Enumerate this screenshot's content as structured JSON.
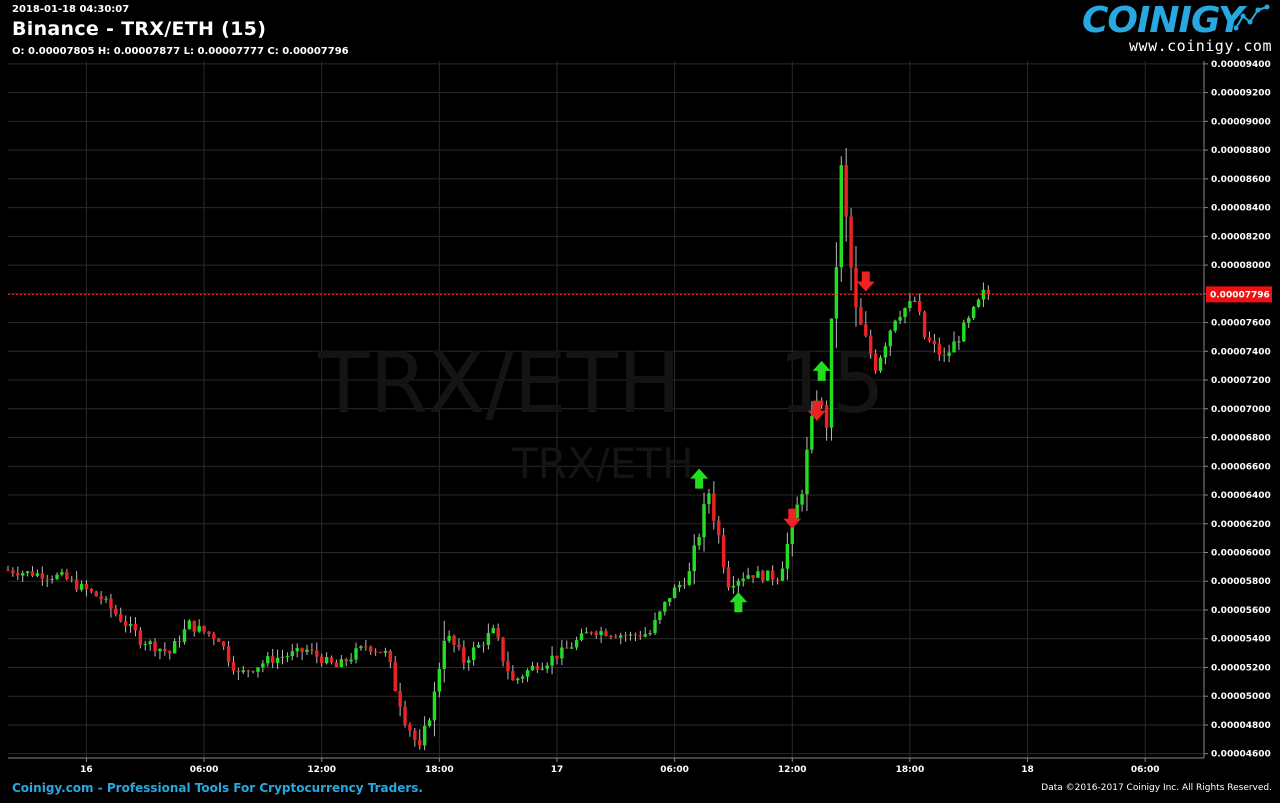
{
  "header": {
    "timestamp": "2018-01-18 04:30:07",
    "title": "Binance - TRX/ETH (15)",
    "ohlc": "O: 0.00007805 H: 0.00007877 L: 0.00007777 C: 0.00007796"
  },
  "logo": {
    "wordmark": "COINIGY",
    "url": "www.coinigy.com"
  },
  "watermark": {
    "pair": "TRX/ETH",
    "interval": "15",
    "pair_small": "TRX/ETH"
  },
  "footer": {
    "left": "Coinigy.com - Professional Tools For Cryptocurrency Traders.",
    "right": "Data ©2016-2017 Coinigy Inc. All Rights Reserved."
  },
  "colors": {
    "up": "#22dd22",
    "down": "#ee2222",
    "accent": "#27a8e0",
    "grid": "#2a2a2a",
    "price_line": "#ff2222"
  },
  "chart_data": {
    "type": "candlestick",
    "interval_minutes": 15,
    "x_start": "2018-01-15 20:00",
    "x_end": "2018-01-18 09:00",
    "x_ticks": [
      {
        "time": "2018-01-16 00:00",
        "label": "16"
      },
      {
        "time": "2018-01-16 06:00",
        "label": "06:00"
      },
      {
        "time": "2018-01-16 12:00",
        "label": "12:00"
      },
      {
        "time": "2018-01-16 18:00",
        "label": "18:00"
      },
      {
        "time": "2018-01-17 00:00",
        "label": "17"
      },
      {
        "time": "2018-01-17 06:00",
        "label": "06:00"
      },
      {
        "time": "2018-01-17 12:00",
        "label": "12:00"
      },
      {
        "time": "2018-01-17 18:00",
        "label": "18:00"
      },
      {
        "time": "2018-01-18 00:00",
        "label": "18"
      },
      {
        "time": "2018-01-18 06:00",
        "label": "06:00"
      }
    ],
    "ylim": [
      4.57e-05,
      9.42e-05
    ],
    "y_ticks": [
      "0.00009400",
      "0.00009200",
      "0.00009000",
      "0.00008800",
      "0.00008600",
      "0.00008400",
      "0.00008200",
      "0.00008000",
      "0.00007800",
      "0.00007600",
      "0.00007400",
      "0.00007200",
      "0.00007000",
      "0.00006800",
      "0.00006600",
      "0.00006400",
      "0.00006200",
      "0.00006000",
      "0.00005800",
      "0.00005600",
      "0.00005400",
      "0.00005200",
      "0.00005000",
      "0.00004800",
      "0.00004600"
    ],
    "current_price": "0.00007796",
    "grid": true,
    "key_points": [
      {
        "time": "2018-01-15 20:00",
        "price": 5.88e-05
      },
      {
        "time": "2018-01-15 23:00",
        "price": 5.83e-05
      },
      {
        "time": "2018-01-16 01:00",
        "price": 5.68e-05
      },
      {
        "time": "2018-01-16 03:00",
        "price": 5.4e-05
      },
      {
        "time": "2018-01-16 04:30",
        "price": 5.3e-05
      },
      {
        "time": "2018-01-16 05:30",
        "price": 5.5e-05
      },
      {
        "time": "2018-01-16 07:00",
        "price": 5.4e-05
      },
      {
        "time": "2018-01-16 08:00",
        "price": 5.15e-05
      },
      {
        "time": "2018-01-16 09:30",
        "price": 5.25e-05
      },
      {
        "time": "2018-01-16 11:30",
        "price": 5.32e-05
      },
      {
        "time": "2018-01-16 13:00",
        "price": 5.2e-05
      },
      {
        "time": "2018-01-16 14:30",
        "price": 5.35e-05
      },
      {
        "time": "2018-01-16 15:30",
        "price": 5.3e-05
      },
      {
        "time": "2018-01-16 16:30",
        "price": 4.85e-05
      },
      {
        "time": "2018-01-16 17:15",
        "price": 4.62e-05
      },
      {
        "time": "2018-01-16 18:00",
        "price": 5e-05
      },
      {
        "time": "2018-01-16 18:30",
        "price": 5.45e-05
      },
      {
        "time": "2018-01-16 19:30",
        "price": 5.25e-05
      },
      {
        "time": "2018-01-16 21:00",
        "price": 5.45e-05
      },
      {
        "time": "2018-01-16 22:00",
        "price": 5.1e-05
      },
      {
        "time": "2018-01-16 23:00",
        "price": 5.2e-05
      },
      {
        "time": "2018-01-17 00:30",
        "price": 5.3e-05
      },
      {
        "time": "2018-01-17 02:00",
        "price": 5.46e-05
      },
      {
        "time": "2018-01-17 04:00",
        "price": 5.42e-05
      },
      {
        "time": "2018-01-17 05:00",
        "price": 5.44e-05
      },
      {
        "time": "2018-01-17 06:00",
        "price": 5.7e-05
      },
      {
        "time": "2018-01-17 07:00",
        "price": 5.85e-05
      },
      {
        "time": "2018-01-17 08:00",
        "price": 6.42e-05
      },
      {
        "time": "2018-01-17 09:00",
        "price": 5.8e-05
      },
      {
        "time": "2018-01-17 10:00",
        "price": 5.85e-05
      },
      {
        "time": "2018-01-17 11:30",
        "price": 5.83e-05
      },
      {
        "time": "2018-01-17 12:00",
        "price": 6.05e-05
      },
      {
        "time": "2018-01-17 12:45",
        "price": 6.45e-05
      },
      {
        "time": "2018-01-17 13:30",
        "price": 7.1e-05
      },
      {
        "time": "2018-01-17 14:00",
        "price": 6.9e-05
      },
      {
        "time": "2018-01-17 14:45",
        "price": 8.6e-05
      },
      {
        "time": "2018-01-17 15:30",
        "price": 7.65e-05
      },
      {
        "time": "2018-01-17 16:30",
        "price": 7.3e-05
      },
      {
        "time": "2018-01-17 17:30",
        "price": 7.65e-05
      },
      {
        "time": "2018-01-17 18:30",
        "price": 7.75e-05
      },
      {
        "time": "2018-01-17 19:00",
        "price": 7.5e-05
      },
      {
        "time": "2018-01-17 20:00",
        "price": 7.35e-05
      },
      {
        "time": "2018-01-17 21:00",
        "price": 7.55e-05
      },
      {
        "time": "2018-01-17 22:00",
        "price": 7.8e-05
      }
    ],
    "signals": [
      {
        "time": "2018-01-17 07:15",
        "price": 6.5e-05,
        "type": "buy"
      },
      {
        "time": "2018-01-17 09:15",
        "price": 5.64e-05,
        "type": "buy"
      },
      {
        "time": "2018-01-17 12:00",
        "price": 6.25e-05,
        "type": "sell"
      },
      {
        "time": "2018-01-17 13:15",
        "price": 7e-05,
        "type": "sell"
      },
      {
        "time": "2018-01-17 13:30",
        "price": 7.25e-05,
        "type": "buy"
      },
      {
        "time": "2018-01-17 15:45",
        "price": 7.9e-05,
        "type": "sell"
      }
    ]
  }
}
